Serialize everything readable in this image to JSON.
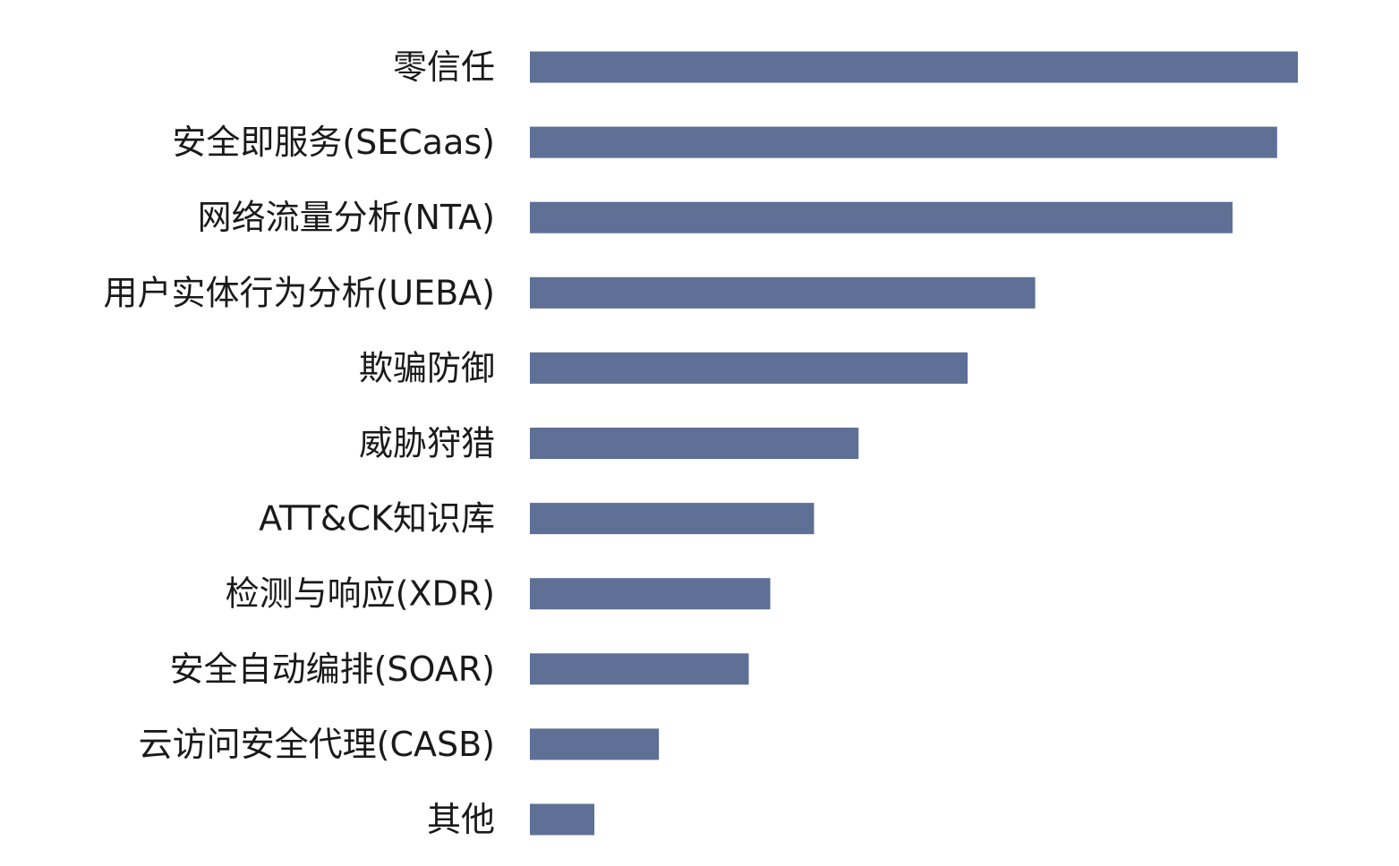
{
  "colors": {
    "bar": "#5f7096",
    "label": "#1a1a1a",
    "background": "#ffffff"
  },
  "chart_data": {
    "type": "bar",
    "orientation": "horizontal",
    "title": "",
    "xlabel": "",
    "ylabel": "",
    "grid": false,
    "legend": "none",
    "xlim": [
      0,
      100
    ],
    "categories": [
      "零信任",
      "安全即服务(SECaas)",
      "网络流量分析(NTA)",
      "用户实体行为分析(UEBA)",
      "欺骗防御",
      "威胁狩猎",
      "ATT&CK知识库",
      "检测与响应(XDR)",
      "安全自动编排(SOAR)",
      "云访问安全代理(CASB)",
      "其他"
    ],
    "values": [
      100,
      97.3,
      91.5,
      65.8,
      57,
      42.8,
      37,
      31.3,
      28.5,
      16.8,
      8.4
    ]
  }
}
